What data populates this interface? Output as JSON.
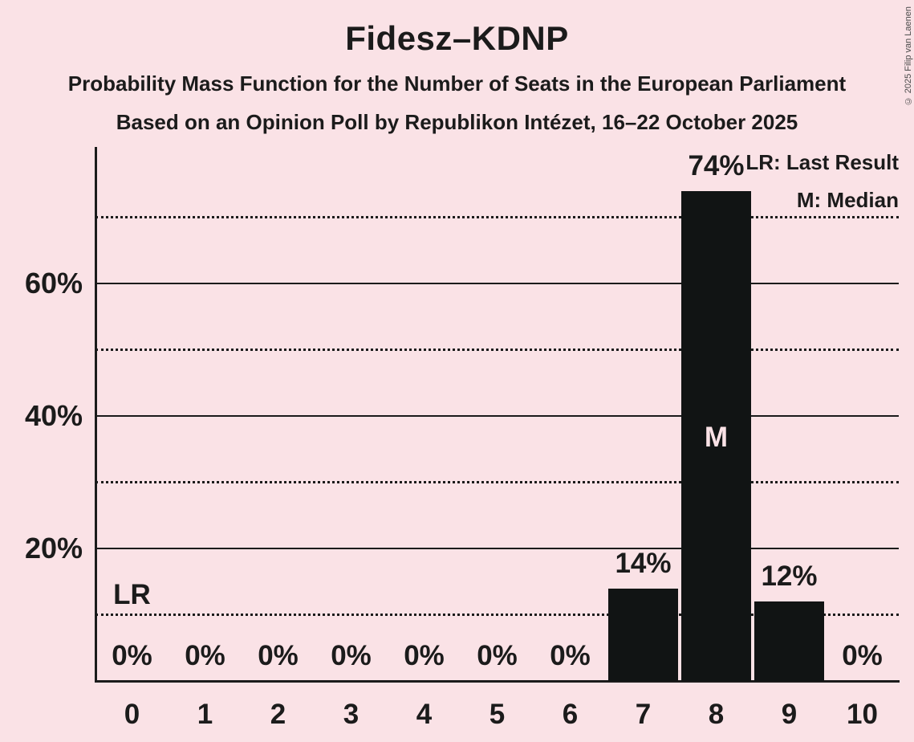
{
  "header": {
    "title": "Fidesz–KDNP",
    "subtitle_line1": "Probability Mass Function for the Number of Seats in the European Parliament",
    "subtitle_line2": "Based on an Opinion Poll by Republikon Intézet, 16–22 October 2025"
  },
  "legend": {
    "lr_label": "LR: Last Result",
    "m_label": "M: Median"
  },
  "copyright": "© 2025 Filip van Laenen",
  "colors": {
    "background": "#FAE2E6",
    "bar": "#111414",
    "text": "#1B1B1B",
    "median_text": "#FAE2E6"
  },
  "chart_data": {
    "type": "bar",
    "title": "Fidesz–KDNP",
    "xlabel": "",
    "ylabel": "",
    "categories": [
      "0",
      "1",
      "2",
      "3",
      "4",
      "5",
      "6",
      "7",
      "8",
      "9",
      "10"
    ],
    "values": [
      0,
      0,
      0,
      0,
      0,
      0,
      0,
      14,
      74,
      12,
      0
    ],
    "value_labels": [
      "0%",
      "0%",
      "0%",
      "0%",
      "0%",
      "0%",
      "0%",
      "14%",
      "74%",
      "12%",
      "0%"
    ],
    "y_axis": {
      "range": [
        0,
        80.6
      ],
      "solid_gridlines": [
        20,
        40,
        60
      ],
      "solid_gridline_labels": [
        "20%",
        "40%",
        "60%"
      ],
      "dotted_gridlines": [
        10,
        30,
        50,
        70
      ]
    },
    "annotations": {
      "median_category_index": 8,
      "median_label": "M",
      "last_result_label": "LR",
      "last_result_line_percent": 10,
      "last_result_label_category_index": 0
    },
    "grid": true,
    "legend_position": "top-right"
  }
}
